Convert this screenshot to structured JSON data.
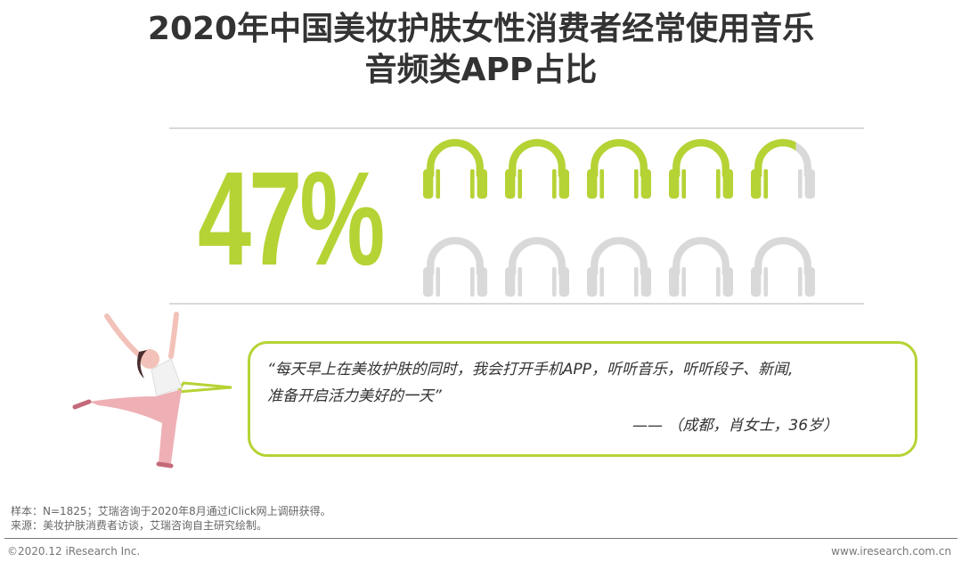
{
  "title": {
    "line1": "2020年中国美妆护肤女性消费者经常使用音乐",
    "line2": "音频类APP占比"
  },
  "stat": {
    "value_label": "47%",
    "value": 0.47,
    "icon": "headphones-icon",
    "icon_count": 10
  },
  "colors": {
    "accent": "#b5d334",
    "inactive": "#d9d9d9"
  },
  "quote": {
    "line1": "“每天早上在美妆护肤的同时，我会打开手机APP，听听音乐，听听段子、新闻,",
    "line2": "准备开启活力美好的一天”",
    "author": "—— （成都，肖女士，36岁）"
  },
  "notes": {
    "sample": "样本：N=1825；艾瑞咨询于2020年8月通过iClick网上调研获得。",
    "source": "来源：美妆护肤消费者访谈，艾瑞咨询自主研究绘制。"
  },
  "footer": {
    "copyright": "©2020.12 iResearch Inc.",
    "website": "www.iresearch.com.cn"
  }
}
